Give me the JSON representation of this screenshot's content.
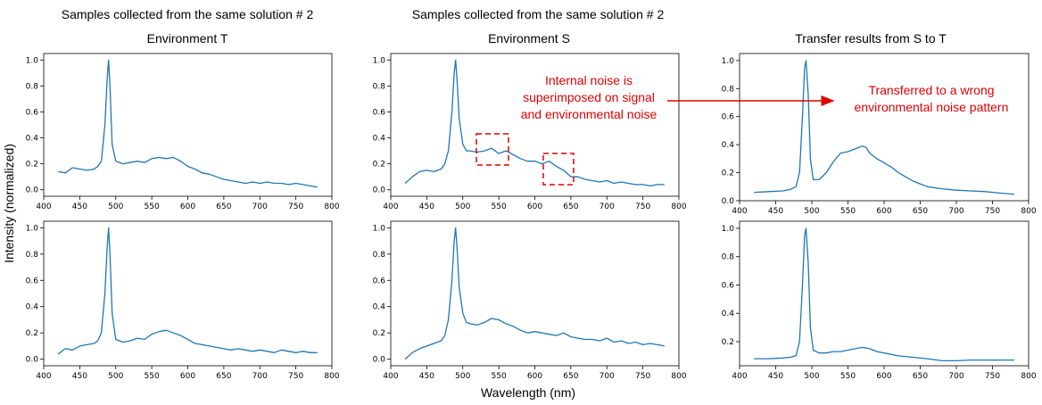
{
  "figure": {
    "xlabel": "Wavelength (nm)",
    "ylabel": "Intensity (normalized)",
    "column_titles": [
      {
        "line1": "Samples collected from the same solution # 2",
        "line2": "Environment T"
      },
      {
        "line1": "Samples collected from the same solution # 2",
        "line2": "Environment S"
      },
      {
        "line1": "",
        "line2": "Transfer results from S to T"
      }
    ],
    "annotation_noise": "Internal noise is superimposed on signal and environmental noise",
    "annotation_noise_lines": [
      "Internal noise is",
      "superimposed on signal",
      "and environmental noise"
    ],
    "annotation_transfer_lines": [
      "Transferred to a wrong",
      "environmental noise pattern"
    ],
    "line_color": "#1f77b4",
    "annotation_color": "#e00000"
  },
  "chart_data": [
    {
      "type": "line",
      "panel": "top-left",
      "xlim": [
        400,
        800
      ],
      "ylim": [
        -0.05,
        1.05
      ],
      "xticks": [
        400,
        450,
        500,
        550,
        600,
        650,
        700,
        750,
        800
      ],
      "yticks": [
        0.0,
        0.2,
        0.4,
        0.6,
        0.8,
        1.0
      ],
      "ytick_labels": [
        "0.0",
        "0.2",
        "0.4",
        "0.6",
        "0.8",
        "1.0"
      ],
      "x": [
        420,
        430,
        440,
        450,
        460,
        470,
        475,
        480,
        485,
        488,
        490,
        492,
        495,
        500,
        510,
        520,
        530,
        540,
        550,
        560,
        570,
        580,
        590,
        600,
        610,
        620,
        630,
        640,
        650,
        660,
        670,
        680,
        690,
        700,
        710,
        720,
        730,
        740,
        750,
        760,
        770,
        780
      ],
      "y": [
        0.14,
        0.13,
        0.17,
        0.16,
        0.15,
        0.16,
        0.18,
        0.22,
        0.5,
        0.85,
        1.0,
        0.8,
        0.35,
        0.22,
        0.2,
        0.21,
        0.22,
        0.21,
        0.24,
        0.25,
        0.24,
        0.25,
        0.22,
        0.18,
        0.16,
        0.13,
        0.12,
        0.1,
        0.08,
        0.07,
        0.06,
        0.05,
        0.06,
        0.05,
        0.06,
        0.05,
        0.05,
        0.04,
        0.05,
        0.04,
        0.03,
        0.02
      ]
    },
    {
      "type": "line",
      "panel": "top-middle",
      "xlim": [
        400,
        800
      ],
      "ylim": [
        -0.05,
        1.05
      ],
      "xticks": [
        400,
        450,
        500,
        550,
        600,
        650,
        700,
        750,
        800
      ],
      "yticks": [
        0.0,
        0.2,
        0.4,
        0.6,
        0.8,
        1.0
      ],
      "ytick_labels": [
        "0.0",
        "0.2",
        "0.4",
        "0.6",
        "0.8",
        "1.0"
      ],
      "x": [
        420,
        430,
        440,
        450,
        460,
        470,
        475,
        480,
        485,
        488,
        490,
        492,
        495,
        500,
        505,
        510,
        520,
        530,
        540,
        550,
        560,
        570,
        580,
        590,
        600,
        610,
        620,
        630,
        640,
        650,
        660,
        670,
        680,
        690,
        700,
        710,
        720,
        730,
        740,
        750,
        760,
        770,
        780
      ],
      "y": [
        0.05,
        0.1,
        0.14,
        0.15,
        0.14,
        0.16,
        0.2,
        0.3,
        0.6,
        0.9,
        1.0,
        0.85,
        0.55,
        0.35,
        0.3,
        0.3,
        0.29,
        0.3,
        0.32,
        0.28,
        0.3,
        0.27,
        0.24,
        0.22,
        0.22,
        0.2,
        0.22,
        0.18,
        0.15,
        0.1,
        0.1,
        0.08,
        0.07,
        0.06,
        0.07,
        0.05,
        0.06,
        0.05,
        0.04,
        0.04,
        0.03,
        0.04,
        0.04
      ]
    },
    {
      "type": "line",
      "panel": "top-right",
      "xlim": [
        400,
        800
      ],
      "ylim": [
        0.0,
        1.05
      ],
      "xticks": [
        400,
        450,
        500,
        550,
        600,
        650,
        700,
        750,
        800
      ],
      "yticks": [
        0.0,
        0.2,
        0.4,
        0.6,
        0.8,
        1.0
      ],
      "ytick_labels": [
        "0.0",
        "0.2",
        "0.4",
        "0.6",
        "0.8",
        "1.0"
      ],
      "x": [
        420,
        440,
        460,
        470,
        478,
        483,
        487,
        490,
        492,
        495,
        498,
        502,
        510,
        520,
        530,
        540,
        550,
        560,
        570,
        575,
        580,
        590,
        600,
        610,
        620,
        630,
        640,
        650,
        660,
        680,
        700,
        720,
        740,
        760,
        780
      ],
      "y": [
        0.06,
        0.065,
        0.07,
        0.08,
        0.1,
        0.2,
        0.6,
        0.95,
        1.0,
        0.75,
        0.3,
        0.15,
        0.15,
        0.2,
        0.28,
        0.34,
        0.35,
        0.37,
        0.39,
        0.38,
        0.34,
        0.3,
        0.27,
        0.24,
        0.2,
        0.17,
        0.14,
        0.12,
        0.1,
        0.085,
        0.075,
        0.07,
        0.065,
        0.055,
        0.045
      ]
    },
    {
      "type": "line",
      "panel": "bottom-left",
      "xlim": [
        400,
        800
      ],
      "ylim": [
        -0.05,
        1.05
      ],
      "xticks": [
        400,
        450,
        500,
        550,
        600,
        650,
        700,
        750,
        800
      ],
      "yticks": [
        0.0,
        0.2,
        0.4,
        0.6,
        0.8,
        1.0
      ],
      "ytick_labels": [
        "0.0",
        "0.2",
        "0.4",
        "0.6",
        "0.8",
        "1.0"
      ],
      "x": [
        420,
        430,
        440,
        450,
        460,
        470,
        475,
        480,
        485,
        488,
        490,
        492,
        495,
        500,
        510,
        520,
        530,
        540,
        550,
        560,
        570,
        580,
        590,
        600,
        610,
        620,
        630,
        640,
        650,
        660,
        670,
        680,
        690,
        700,
        710,
        720,
        730,
        740,
        750,
        760,
        770,
        780
      ],
      "y": [
        0.04,
        0.08,
        0.07,
        0.1,
        0.11,
        0.12,
        0.14,
        0.2,
        0.5,
        0.85,
        1.0,
        0.8,
        0.35,
        0.15,
        0.13,
        0.14,
        0.16,
        0.15,
        0.19,
        0.21,
        0.22,
        0.2,
        0.18,
        0.15,
        0.12,
        0.11,
        0.1,
        0.09,
        0.08,
        0.07,
        0.08,
        0.07,
        0.06,
        0.07,
        0.06,
        0.05,
        0.07,
        0.06,
        0.05,
        0.06,
        0.05,
        0.05
      ]
    },
    {
      "type": "line",
      "panel": "bottom-middle",
      "xlim": [
        400,
        800
      ],
      "ylim": [
        -0.05,
        1.05
      ],
      "xticks": [
        400,
        450,
        500,
        550,
        600,
        650,
        700,
        750,
        800
      ],
      "yticks": [
        0.0,
        0.2,
        0.4,
        0.6,
        0.8,
        1.0
      ],
      "ytick_labels": [
        "0.0",
        "0.2",
        "0.4",
        "0.6",
        "0.8",
        "1.0"
      ],
      "x": [
        420,
        430,
        440,
        450,
        460,
        470,
        475,
        480,
        485,
        488,
        490,
        492,
        495,
        500,
        505,
        510,
        520,
        530,
        540,
        550,
        560,
        570,
        580,
        590,
        600,
        610,
        620,
        630,
        640,
        650,
        660,
        670,
        680,
        690,
        700,
        710,
        720,
        730,
        740,
        750,
        760,
        770,
        780
      ],
      "y": [
        0.0,
        0.05,
        0.08,
        0.1,
        0.12,
        0.14,
        0.18,
        0.3,
        0.6,
        0.9,
        1.0,
        0.85,
        0.55,
        0.35,
        0.28,
        0.27,
        0.26,
        0.28,
        0.31,
        0.3,
        0.27,
        0.25,
        0.22,
        0.2,
        0.21,
        0.2,
        0.19,
        0.18,
        0.2,
        0.17,
        0.16,
        0.15,
        0.15,
        0.14,
        0.16,
        0.13,
        0.14,
        0.12,
        0.13,
        0.11,
        0.12,
        0.11,
        0.1
      ]
    },
    {
      "type": "line",
      "panel": "bottom-right",
      "xlim": [
        400,
        800
      ],
      "ylim": [
        0.03,
        1.05
      ],
      "xticks": [
        400,
        450,
        500,
        550,
        600,
        650,
        700,
        750,
        800
      ],
      "yticks": [
        0.2,
        0.4,
        0.6,
        0.8,
        1.0
      ],
      "ytick_labels": [
        "0.2",
        "0.4",
        "0.6",
        "0.8",
        "1.0"
      ],
      "x": [
        420,
        440,
        460,
        470,
        478,
        483,
        487,
        490,
        492,
        495,
        498,
        502,
        510,
        520,
        530,
        540,
        550,
        560,
        570,
        580,
        590,
        600,
        620,
        640,
        660,
        680,
        700,
        720,
        740,
        760,
        780
      ],
      "y": [
        0.08,
        0.08,
        0.085,
        0.09,
        0.1,
        0.2,
        0.6,
        0.95,
        1.0,
        0.75,
        0.3,
        0.14,
        0.12,
        0.12,
        0.13,
        0.13,
        0.14,
        0.15,
        0.16,
        0.15,
        0.13,
        0.12,
        0.1,
        0.09,
        0.08,
        0.065,
        0.065,
        0.07,
        0.07,
        0.07,
        0.07
      ]
    }
  ]
}
